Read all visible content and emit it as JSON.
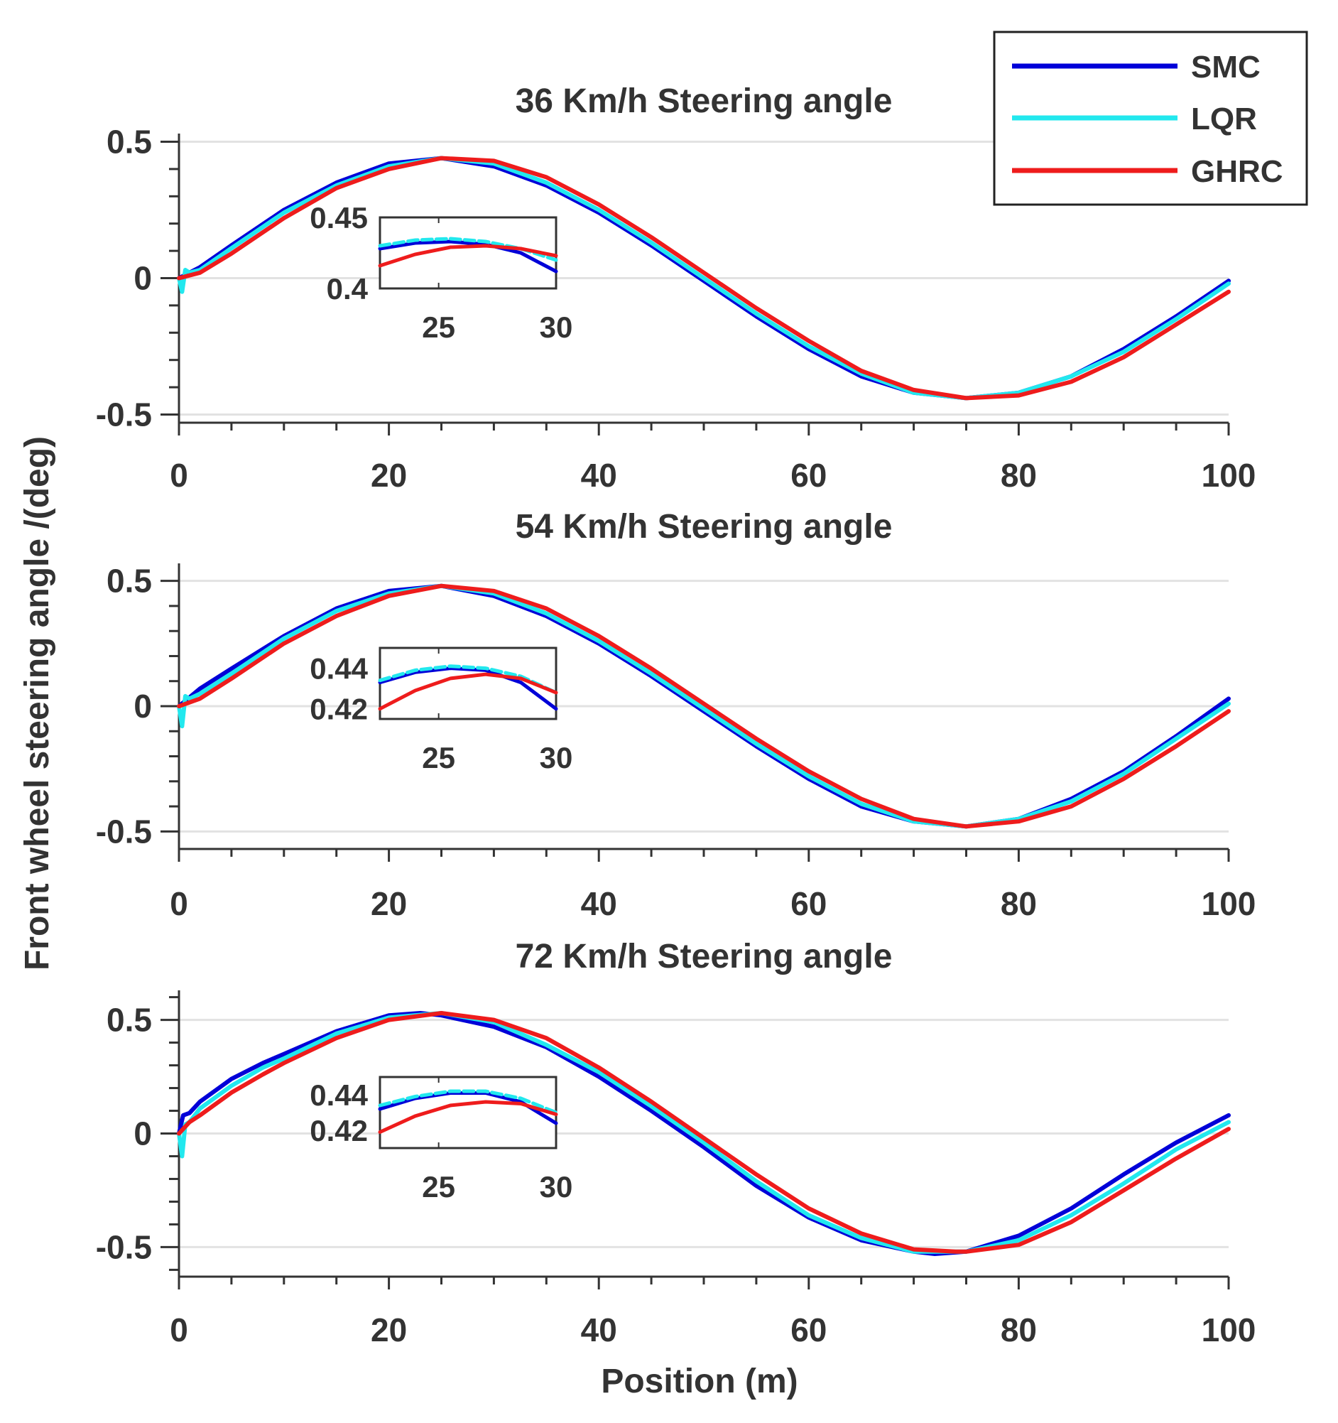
{
  "figure": {
    "ylabel": "Front wheel steering angle /(deg)",
    "xlabel": "Position (m)"
  },
  "legend": {
    "placement": "top-right",
    "entries": [
      {
        "name": "SMC",
        "color": "#0000d8"
      },
      {
        "name": "LQR",
        "color": "#22e8ee"
      },
      {
        "name": "GHRC",
        "color": "#ee1c1c"
      }
    ]
  },
  "chart_data": [
    {
      "type": "line",
      "title": "36 Km/h Steering angle",
      "xlabel": "Position (m)",
      "ylabel": "Front wheel steering angle /(deg)",
      "xlim": [
        0,
        100
      ],
      "ylim": [
        -0.53,
        0.53
      ],
      "xticks": [
        0,
        20,
        40,
        60,
        80,
        100
      ],
      "yticks": [
        -0.5,
        0,
        0.5
      ],
      "ytick_labels": [
        "-0.5",
        "0",
        "0.5"
      ],
      "grid": true,
      "series": [
        {
          "name": "SMC",
          "color": "#0000d8",
          "x": [
            0,
            2,
            5,
            10,
            15,
            20,
            25,
            30,
            35,
            40,
            45,
            50,
            55,
            60,
            65,
            70,
            75,
            80,
            85,
            90,
            95,
            100
          ],
          "y": [
            0.0,
            0.04,
            0.12,
            0.25,
            0.35,
            0.42,
            0.44,
            0.41,
            0.34,
            0.24,
            0.12,
            -0.01,
            -0.14,
            -0.26,
            -0.36,
            -0.42,
            -0.44,
            -0.42,
            -0.36,
            -0.26,
            -0.14,
            -0.01
          ]
        },
        {
          "name": "LQR",
          "color": "#22e8ee",
          "x": [
            0,
            0.3,
            0.6,
            1,
            2,
            5,
            10,
            15,
            20,
            25,
            30,
            35,
            40,
            45,
            50,
            55,
            60,
            65,
            70,
            75,
            80,
            85,
            90,
            95,
            100
          ],
          "y": [
            0.0,
            -0.05,
            0.03,
            0.02,
            0.03,
            0.11,
            0.24,
            0.34,
            0.41,
            0.44,
            0.42,
            0.35,
            0.25,
            0.13,
            0.0,
            -0.13,
            -0.25,
            -0.35,
            -0.42,
            -0.44,
            -0.42,
            -0.36,
            -0.27,
            -0.15,
            -0.02
          ]
        },
        {
          "name": "GHRC",
          "color": "#ee1c1c",
          "x": [
            0,
            2,
            5,
            10,
            15,
            20,
            25,
            30,
            35,
            40,
            45,
            50,
            55,
            60,
            65,
            70,
            75,
            80,
            85,
            90,
            95,
            100
          ],
          "y": [
            0.0,
            0.02,
            0.09,
            0.22,
            0.33,
            0.4,
            0.44,
            0.43,
            0.37,
            0.27,
            0.15,
            0.02,
            -0.11,
            -0.23,
            -0.34,
            -0.41,
            -0.44,
            -0.43,
            -0.38,
            -0.29,
            -0.17,
            -0.05
          ]
        }
      ],
      "inset": {
        "xlim": [
          22.5,
          30
        ],
        "ylim": [
          0.4,
          0.45
        ],
        "xticks": [
          25,
          30
        ],
        "yticks": [
          0.4,
          0.45
        ],
        "ytick_labels": [
          "0.4",
          "0.45"
        ],
        "series": [
          {
            "name": "SMC",
            "x": [
              22.5,
              24,
              25.5,
              27,
              28.5,
              30
            ],
            "y": [
              0.428,
              0.432,
              0.433,
              0.431,
              0.425,
              0.412
            ]
          },
          {
            "name": "LQR",
            "x": [
              22.5,
              24,
              25.5,
              27,
              28.5,
              30
            ],
            "y": [
              0.43,
              0.434,
              0.435,
              0.433,
              0.428,
              0.42
            ]
          },
          {
            "name": "GHRC",
            "x": [
              22.5,
              24,
              25.5,
              27,
              28.5,
              30
            ],
            "y": [
              0.416,
              0.424,
              0.429,
              0.43,
              0.428,
              0.423
            ]
          }
        ]
      }
    },
    {
      "type": "line",
      "title": "54 Km/h Steering angle",
      "xlabel": "Position (m)",
      "ylabel": "Front wheel steering angle /(deg)",
      "xlim": [
        0,
        100
      ],
      "ylim": [
        -0.57,
        0.57
      ],
      "xticks": [
        0,
        20,
        40,
        60,
        80,
        100
      ],
      "yticks": [
        -0.5,
        0,
        0.5
      ],
      "ytick_labels": [
        "-0.5",
        "0",
        "0.5"
      ],
      "grid": true,
      "series": [
        {
          "name": "SMC",
          "color": "#0000d8",
          "x": [
            0,
            2,
            5,
            10,
            15,
            20,
            25,
            30,
            35,
            40,
            45,
            50,
            55,
            60,
            65,
            70,
            75,
            80,
            85,
            90,
            95,
            100
          ],
          "y": [
            0.0,
            0.07,
            0.15,
            0.28,
            0.39,
            0.46,
            0.48,
            0.44,
            0.36,
            0.25,
            0.12,
            -0.02,
            -0.16,
            -0.29,
            -0.4,
            -0.46,
            -0.48,
            -0.45,
            -0.37,
            -0.26,
            -0.12,
            0.03
          ]
        },
        {
          "name": "LQR",
          "color": "#22e8ee",
          "x": [
            0,
            0.3,
            0.6,
            1,
            2,
            5,
            10,
            15,
            20,
            25,
            30,
            35,
            40,
            45,
            50,
            55,
            60,
            65,
            70,
            75,
            80,
            85,
            90,
            95,
            100
          ],
          "y": [
            0.0,
            -0.08,
            0.04,
            0.03,
            0.05,
            0.13,
            0.27,
            0.38,
            0.45,
            0.48,
            0.45,
            0.37,
            0.26,
            0.13,
            -0.01,
            -0.15,
            -0.28,
            -0.39,
            -0.46,
            -0.48,
            -0.45,
            -0.38,
            -0.27,
            -0.13,
            0.01
          ]
        },
        {
          "name": "GHRC",
          "color": "#ee1c1c",
          "x": [
            0,
            2,
            5,
            10,
            15,
            20,
            25,
            30,
            35,
            40,
            45,
            50,
            55,
            60,
            65,
            70,
            75,
            80,
            85,
            90,
            95,
            100
          ],
          "y": [
            0.0,
            0.03,
            0.11,
            0.25,
            0.36,
            0.44,
            0.48,
            0.46,
            0.39,
            0.28,
            0.15,
            0.01,
            -0.13,
            -0.26,
            -0.37,
            -0.45,
            -0.48,
            -0.46,
            -0.4,
            -0.29,
            -0.16,
            -0.02
          ]
        }
      ],
      "inset": {
        "xlim": [
          22.5,
          30
        ],
        "ylim": [
          0.415,
          0.45
        ],
        "xticks": [
          25,
          30
        ],
        "yticks": [
          0.42,
          0.44
        ],
        "ytick_labels": [
          "0.42",
          "0.44"
        ],
        "series": [
          {
            "name": "SMC",
            "x": [
              22.5,
              24,
              25.5,
              27,
              28.5,
              30
            ],
            "y": [
              0.433,
              0.438,
              0.44,
              0.439,
              0.433,
              0.42
            ]
          },
          {
            "name": "LQR",
            "x": [
              22.5,
              24,
              25.5,
              27,
              28.5,
              30
            ],
            "y": [
              0.434,
              0.439,
              0.441,
              0.44,
              0.436,
              0.428
            ]
          },
          {
            "name": "GHRC",
            "x": [
              22.5,
              24,
              25.5,
              27,
              28.5,
              30
            ],
            "y": [
              0.42,
              0.429,
              0.435,
              0.437,
              0.435,
              0.428
            ]
          }
        ]
      }
    },
    {
      "type": "line",
      "title": "72 Km/h Steering angle",
      "xlabel": "Position (m)",
      "ylabel": "Front wheel steering angle /(deg)",
      "xlim": [
        0,
        100
      ],
      "ylim": [
        -0.63,
        0.63
      ],
      "xticks": [
        0,
        20,
        40,
        60,
        80,
        100
      ],
      "yticks": [
        -0.5,
        0,
        0.5
      ],
      "ytick_labels": [
        "-0.5",
        "0",
        "0.5"
      ],
      "grid": true,
      "series": [
        {
          "name": "SMC",
          "color": "#0000d8",
          "x": [
            0,
            0.4,
            1,
            2,
            5,
            8,
            10,
            15,
            20,
            23,
            25,
            30,
            35,
            40,
            45,
            50,
            55,
            60,
            65,
            70,
            72,
            75,
            80,
            85,
            90,
            95,
            100
          ],
          "y": [
            0.0,
            0.08,
            0.09,
            0.14,
            0.24,
            0.31,
            0.35,
            0.45,
            0.52,
            0.53,
            0.52,
            0.47,
            0.38,
            0.25,
            0.1,
            -0.06,
            -0.23,
            -0.37,
            -0.47,
            -0.52,
            -0.53,
            -0.52,
            -0.45,
            -0.33,
            -0.18,
            -0.04,
            0.08
          ]
        },
        {
          "name": "LQR",
          "color": "#22e8ee",
          "x": [
            0,
            0.3,
            0.6,
            1,
            2,
            5,
            8,
            10,
            15,
            20,
            25,
            30,
            35,
            40,
            45,
            50,
            55,
            60,
            65,
            70,
            75,
            80,
            85,
            90,
            95,
            100
          ],
          "y": [
            0.0,
            -0.1,
            0.04,
            0.05,
            0.11,
            0.21,
            0.29,
            0.33,
            0.44,
            0.51,
            0.53,
            0.49,
            0.39,
            0.27,
            0.12,
            -0.04,
            -0.21,
            -0.36,
            -0.46,
            -0.52,
            -0.52,
            -0.47,
            -0.36,
            -0.22,
            -0.07,
            0.05
          ]
        },
        {
          "name": "GHRC",
          "color": "#ee1c1c",
          "x": [
            0,
            1,
            2,
            5,
            8,
            10,
            15,
            20,
            25,
            30,
            35,
            40,
            45,
            50,
            55,
            60,
            65,
            70,
            74,
            75,
            80,
            85,
            90,
            95,
            100
          ],
          "y": [
            0.0,
            0.05,
            0.08,
            0.18,
            0.26,
            0.31,
            0.42,
            0.5,
            0.53,
            0.5,
            0.42,
            0.29,
            0.14,
            -0.02,
            -0.18,
            -0.33,
            -0.44,
            -0.51,
            -0.52,
            -0.52,
            -0.49,
            -0.39,
            -0.25,
            -0.11,
            0.02
          ]
        }
      ],
      "inset": {
        "xlim": [
          22.5,
          30
        ],
        "ylim": [
          0.41,
          0.45
        ],
        "xticks": [
          25,
          30
        ],
        "yticks": [
          0.42,
          0.44
        ],
        "ytick_labels": [
          "0.42",
          "0.44"
        ],
        "series": [
          {
            "name": "SMC",
            "x": [
              22.5,
              24,
              25.5,
              27,
              28.5,
              30
            ],
            "y": [
              0.432,
              0.438,
              0.441,
              0.441,
              0.436,
              0.424
            ]
          },
          {
            "name": "LQR",
            "x": [
              22.5,
              24,
              25.5,
              27,
              28.5,
              30
            ],
            "y": [
              0.434,
              0.439,
              0.442,
              0.442,
              0.438,
              0.43
            ]
          },
          {
            "name": "GHRC",
            "x": [
              22.5,
              24,
              25.5,
              27,
              28.5,
              30
            ],
            "y": [
              0.419,
              0.428,
              0.434,
              0.436,
              0.435,
              0.429
            ]
          }
        ]
      }
    }
  ]
}
